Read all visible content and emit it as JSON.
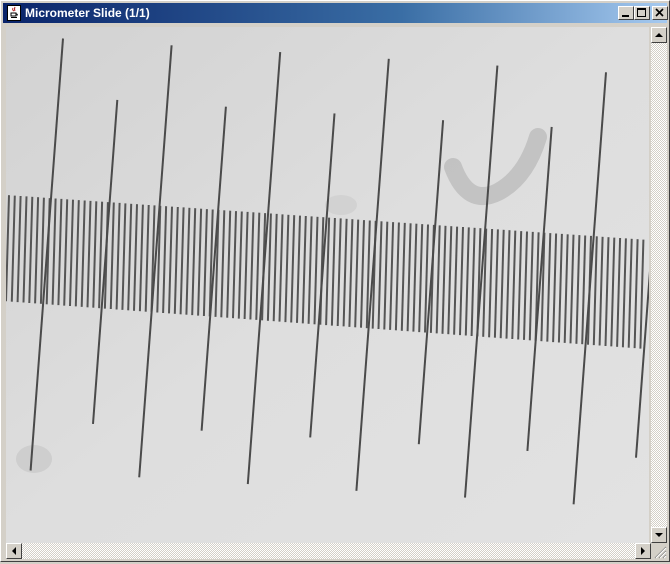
{
  "window": {
    "title": "Micrometer Slide (1/1)",
    "icon": "java-cup-icon"
  },
  "title_buttons": {
    "minimize_icon": "minimize-icon",
    "maximize_icon": "maximize-icon",
    "close_icon": "close-icon"
  },
  "scrollbars": {
    "vertical": {
      "up_icon": "arrow-up-icon",
      "down_icon": "arrow-down-icon"
    },
    "horizontal": {
      "left_icon": "arrow-left-icon",
      "right_icon": "arrow-right-icon"
    }
  },
  "colors": {
    "title_active_start": "#0a246a",
    "title_active_end": "#a6caf0",
    "image_background": "#d8d8d8",
    "reticle_lines": "#4a4a4a"
  }
}
